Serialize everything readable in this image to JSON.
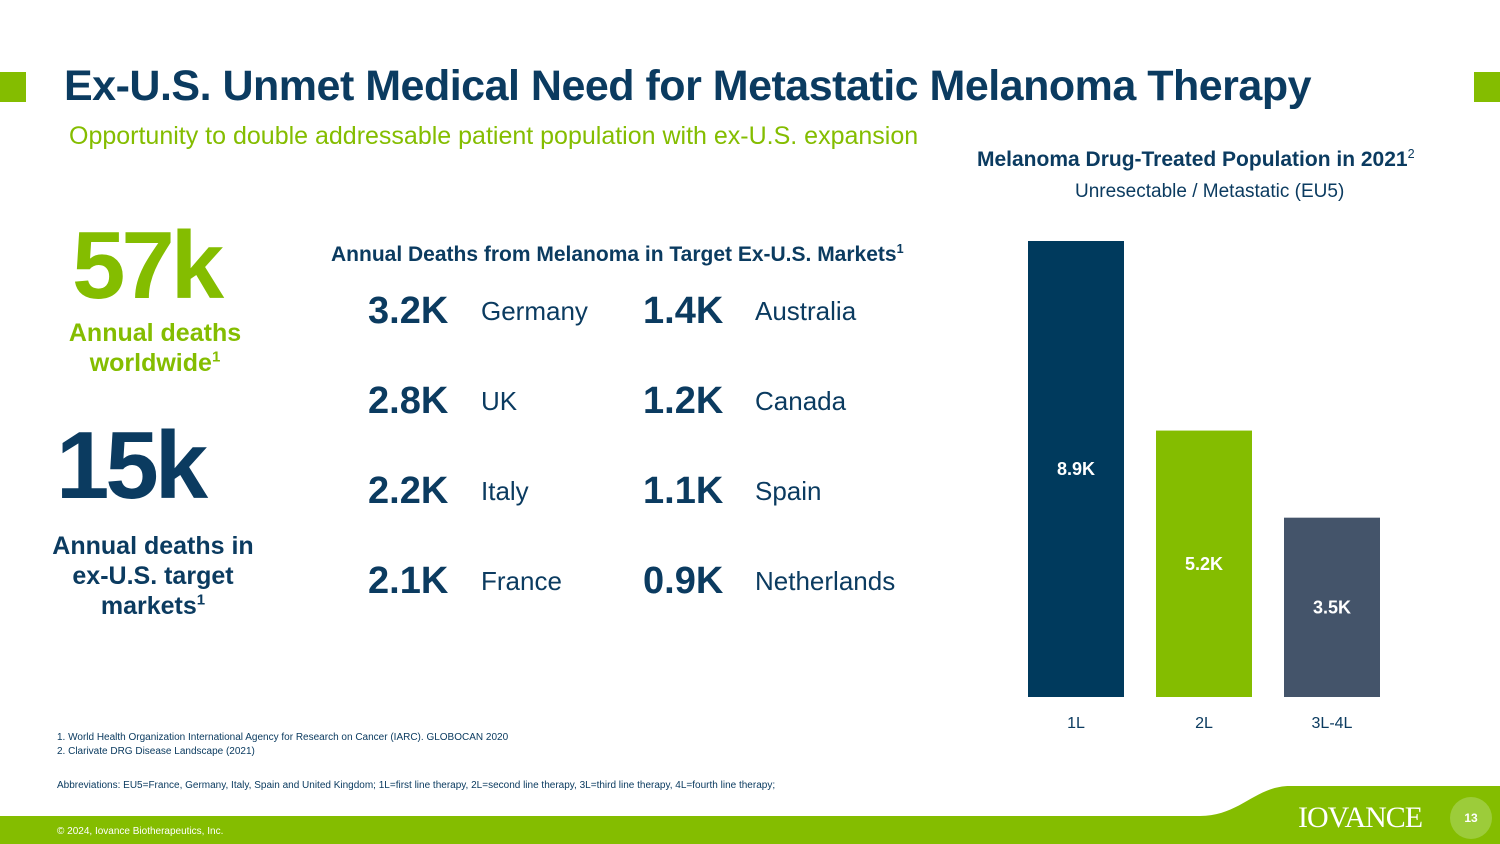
{
  "header": {
    "title": "Ex-U.S. Unmet Medical Need for Metastatic Melanoma Therapy",
    "subtitle": "Opportunity to double addressable patient population with ex-U.S. expansion"
  },
  "stats": {
    "worldwide": {
      "value": "57k",
      "label": "Annual deaths worldwide",
      "ref": "1"
    },
    "target": {
      "value": "15k",
      "label": "Annual deaths in ex-U.S. target markets",
      "ref": "1"
    }
  },
  "markets": {
    "heading": "Annual Deaths from Melanoma in Target Ex-U.S. Markets",
    "heading_ref": "1",
    "left": [
      {
        "value": "3.2K",
        "country": "Germany"
      },
      {
        "value": "2.8K",
        "country": "UK"
      },
      {
        "value": "2.2K",
        "country": "Italy"
      },
      {
        "value": "2.1K",
        "country": "France"
      }
    ],
    "right": [
      {
        "value": "1.4K",
        "country": "Australia"
      },
      {
        "value": "1.2K",
        "country": "Canada"
      },
      {
        "value": "1.1K",
        "country": "Spain"
      },
      {
        "value": "0.9K",
        "country": "Netherlands"
      }
    ]
  },
  "chart_data": {
    "type": "bar",
    "title": "Melanoma Drug-Treated Population in 2021",
    "title_ref": "2",
    "subtitle": "Unresectable / Metastatic (EU5)",
    "categories": [
      "1L",
      "2L",
      "3L-4L"
    ],
    "values": [
      8.9,
      5.2,
      3.5
    ],
    "value_labels": [
      "8.9K",
      "5.2K",
      "3.5K"
    ],
    "colors": [
      "#003a5d",
      "#84bd00",
      "#44546a"
    ],
    "unit": "K",
    "ylim": [
      0,
      8.9
    ],
    "grid": false,
    "legend": "none"
  },
  "footnotes": [
    "1.  World Health Organization International Agency for Research on Cancer (IARC). GLOBOCAN 2020",
    "2.  Clarivate DRG Disease Landscape (2021)"
  ],
  "abbreviations": "Abbreviations: EU5=France, Germany, Italy, Spain and United Kingdom; 1L=first line therapy, 2L=second line therapy, 3L=third line therapy, 4L=fourth line therapy;",
  "footer": {
    "copyright": "© 2024, Iovance Biotherapeutics, Inc.",
    "logo": "IOVANCE",
    "page_number": "13"
  },
  "colors": {
    "green": "#84bd00",
    "navy": "#0b3b60",
    "slate": "#44546a"
  }
}
